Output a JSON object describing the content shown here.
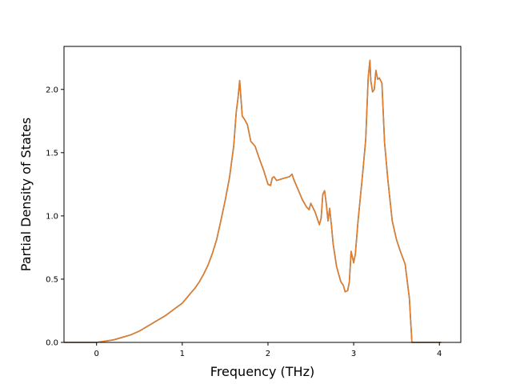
{
  "chart_data": {
    "type": "line",
    "title": "",
    "xlabel": "Frequency (THz)",
    "ylabel": "Partial Density of States",
    "xlim": [
      -0.38,
      4.25
    ],
    "ylim": [
      0.0,
      2.34
    ],
    "xticks": [
      0,
      1,
      2,
      3,
      4
    ],
    "xtick_labels": [
      "0",
      "1",
      "2",
      "3",
      "4"
    ],
    "yticks": [
      0.0,
      0.5,
      1.0,
      1.5,
      2.0
    ],
    "ytick_labels": [
      "0.0",
      "0.5",
      "1.0",
      "1.5",
      "2.0"
    ],
    "grid": false,
    "series": [
      {
        "name": "",
        "color": "#1f77b4",
        "x": [
          -0.38,
          0.0,
          0.1,
          0.2,
          0.3,
          0.4,
          0.5,
          0.6,
          0.7,
          0.8,
          0.9,
          1.0,
          1.05,
          1.1,
          1.15,
          1.2,
          1.25,
          1.3,
          1.35,
          1.4,
          1.45,
          1.5,
          1.55,
          1.6,
          1.63,
          1.65,
          1.67,
          1.7,
          1.73,
          1.76,
          1.8,
          1.85,
          1.9,
          1.95,
          2.0,
          2.03,
          2.05,
          2.07,
          2.1,
          2.15,
          2.2,
          2.25,
          2.28,
          2.3,
          2.35,
          2.4,
          2.45,
          2.48,
          2.5,
          2.55,
          2.58,
          2.6,
          2.62,
          2.64,
          2.66,
          2.68,
          2.7,
          2.72,
          2.74,
          2.76,
          2.8,
          2.85,
          2.88,
          2.9,
          2.93,
          2.95,
          2.97,
          3.0,
          3.02,
          3.05,
          3.1,
          3.14,
          3.17,
          3.19,
          3.2,
          3.22,
          3.24,
          3.26,
          3.28,
          3.3,
          3.33,
          3.36,
          3.4,
          3.45,
          3.5,
          3.55,
          3.6,
          3.65,
          3.68,
          4.02
        ],
        "y": [
          0.0,
          0.0,
          0.01,
          0.02,
          0.04,
          0.06,
          0.09,
          0.13,
          0.17,
          0.21,
          0.26,
          0.31,
          0.35,
          0.39,
          0.43,
          0.48,
          0.54,
          0.61,
          0.7,
          0.81,
          0.96,
          1.12,
          1.3,
          1.55,
          1.82,
          1.93,
          2.07,
          1.79,
          1.76,
          1.72,
          1.59,
          1.55,
          1.45,
          1.36,
          1.25,
          1.24,
          1.3,
          1.31,
          1.28,
          1.29,
          1.3,
          1.31,
          1.33,
          1.29,
          1.21,
          1.13,
          1.07,
          1.05,
          1.1,
          1.03,
          0.97,
          0.93,
          0.98,
          1.17,
          1.2,
          1.1,
          0.96,
          1.06,
          0.93,
          0.78,
          0.6,
          0.48,
          0.45,
          0.4,
          0.41,
          0.48,
          0.72,
          0.63,
          0.7,
          0.95,
          1.3,
          1.6,
          2.1,
          2.23,
          2.07,
          1.98,
          2.0,
          2.15,
          2.08,
          2.09,
          2.05,
          1.58,
          1.28,
          0.96,
          0.81,
          0.71,
          0.62,
          0.35,
          0.0,
          0.0
        ]
      },
      {
        "name": "",
        "color": "#e37d2a",
        "x": [
          -0.38,
          0.0,
          0.1,
          0.2,
          0.3,
          0.4,
          0.5,
          0.6,
          0.7,
          0.8,
          0.9,
          1.0,
          1.05,
          1.1,
          1.15,
          1.2,
          1.25,
          1.3,
          1.35,
          1.4,
          1.45,
          1.5,
          1.55,
          1.6,
          1.63,
          1.65,
          1.67,
          1.7,
          1.73,
          1.76,
          1.8,
          1.85,
          1.9,
          1.95,
          2.0,
          2.03,
          2.05,
          2.07,
          2.1,
          2.15,
          2.2,
          2.25,
          2.28,
          2.3,
          2.35,
          2.4,
          2.45,
          2.48,
          2.5,
          2.55,
          2.58,
          2.6,
          2.62,
          2.64,
          2.66,
          2.68,
          2.7,
          2.72,
          2.74,
          2.76,
          2.8,
          2.85,
          2.88,
          2.9,
          2.93,
          2.95,
          2.97,
          3.0,
          3.02,
          3.05,
          3.1,
          3.14,
          3.17,
          3.19,
          3.2,
          3.22,
          3.24,
          3.26,
          3.28,
          3.3,
          3.33,
          3.36,
          3.4,
          3.45,
          3.5,
          3.55,
          3.6,
          3.65,
          3.68,
          4.02
        ],
        "y": [
          0.0,
          0.0,
          0.01,
          0.02,
          0.04,
          0.06,
          0.09,
          0.13,
          0.17,
          0.21,
          0.26,
          0.31,
          0.35,
          0.39,
          0.43,
          0.48,
          0.54,
          0.61,
          0.7,
          0.81,
          0.96,
          1.12,
          1.3,
          1.55,
          1.82,
          1.93,
          2.07,
          1.79,
          1.76,
          1.72,
          1.59,
          1.55,
          1.45,
          1.36,
          1.25,
          1.24,
          1.3,
          1.31,
          1.28,
          1.29,
          1.3,
          1.31,
          1.33,
          1.29,
          1.21,
          1.13,
          1.07,
          1.05,
          1.1,
          1.03,
          0.97,
          0.93,
          0.98,
          1.17,
          1.2,
          1.1,
          0.96,
          1.06,
          0.93,
          0.78,
          0.6,
          0.48,
          0.45,
          0.4,
          0.41,
          0.48,
          0.72,
          0.63,
          0.7,
          0.95,
          1.3,
          1.6,
          2.1,
          2.23,
          2.07,
          1.98,
          2.0,
          2.15,
          2.08,
          2.09,
          2.05,
          1.58,
          1.28,
          0.96,
          0.81,
          0.71,
          0.62,
          0.35,
          0.0,
          0.0
        ]
      }
    ]
  }
}
